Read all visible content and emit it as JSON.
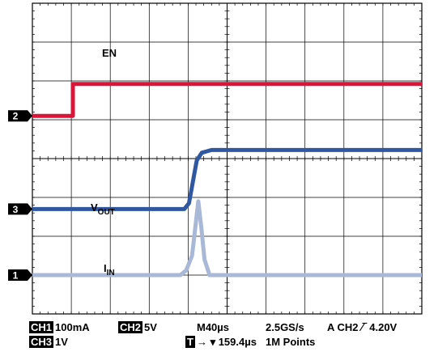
{
  "chart_data": {
    "type": "line",
    "grid": true,
    "x_divisions": 10,
    "y_divisions": 8,
    "time_per_div_us": 40,
    "series": [
      {
        "id": "ch2",
        "name": "EN",
        "color": "#d9153a",
        "marker": "2",
        "ref_div": 5.1,
        "points": [
          [
            0,
            5.1
          ],
          [
            1.04,
            5.1
          ],
          [
            1.04,
            5.92
          ],
          [
            10,
            5.92
          ]
        ]
      },
      {
        "id": "ch3",
        "name": "VOUT",
        "color": "#2f58a0",
        "marker": "3",
        "ref_div": 2.7,
        "points": [
          [
            0,
            2.7
          ],
          [
            3.9,
            2.7
          ],
          [
            4.02,
            2.85
          ],
          [
            4.12,
            3.4
          ],
          [
            4.22,
            3.95
          ],
          [
            4.35,
            4.15
          ],
          [
            4.6,
            4.22
          ],
          [
            10,
            4.22
          ]
        ]
      },
      {
        "id": "ch1",
        "name": "IIN",
        "color": "#a8b8d6",
        "marker": "1",
        "ref_div": 1.0,
        "points": [
          [
            0,
            1.0
          ],
          [
            3.8,
            1.0
          ],
          [
            3.95,
            1.12
          ],
          [
            4.1,
            1.5
          ],
          [
            4.18,
            2.2
          ],
          [
            4.26,
            2.9
          ],
          [
            4.34,
            2.2
          ],
          [
            4.42,
            1.4
          ],
          [
            4.55,
            1.0
          ],
          [
            10,
            1.0
          ]
        ]
      }
    ],
    "series_labels": [
      {
        "series": "ch2",
        "main": "EN",
        "sub": ""
      },
      {
        "series": "ch3",
        "main": "V",
        "sub": "OUT"
      },
      {
        "series": "ch1",
        "main": "I",
        "sub": "IN"
      }
    ]
  },
  "footer": {
    "ch1_tag": "CH1",
    "ch1_scale": "100mA",
    "ch2_tag": "CH2",
    "ch2_scale": "5V",
    "timebase": "M40µs",
    "sample_rate": "2.5GS/s",
    "trigger": "A  CH2 ∕‾ 4.20V",
    "ch3_tag": "CH3",
    "ch3_scale": "1V",
    "trig_tag": "T",
    "trig_pos": "→ ▾ 159.4µs",
    "record_length": "1M Points"
  }
}
